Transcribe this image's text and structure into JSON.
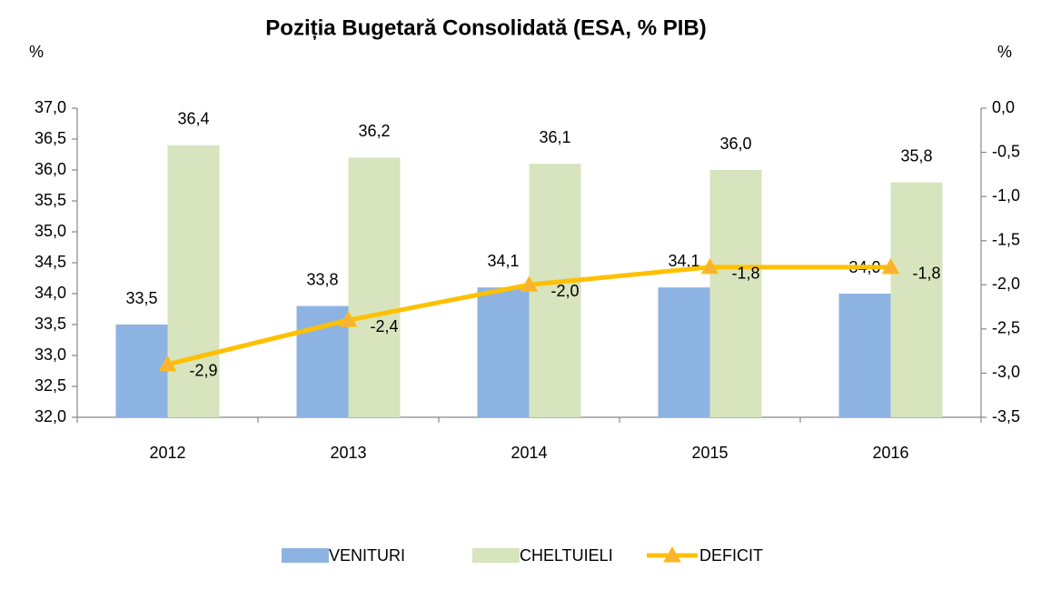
{
  "chart_data": {
    "type": "bar_line",
    "title": "Poziția Bugetară Consolidată (ESA, % PIB)",
    "y_label": "%",
    "y2_label": "%",
    "categories": [
      "2012",
      "2013",
      "2014",
      "2015",
      "2016"
    ],
    "series": [
      {
        "name": "VENITURI",
        "type": "bar",
        "color": "#8db3e2",
        "values": [
          33.5,
          33.8,
          34.1,
          34.1,
          34.0
        ],
        "value_labels": [
          "33,5",
          "33,8",
          "34,1",
          "34,1",
          "34,0"
        ]
      },
      {
        "name": "CHELTUIELI",
        "type": "bar",
        "color": "#d7e4bd",
        "values": [
          36.4,
          36.2,
          36.1,
          36.0,
          35.8
        ],
        "value_labels": [
          "36,4",
          "36,2",
          "36,1",
          "36,0",
          "35,8"
        ]
      },
      {
        "name": "DEFICIT",
        "type": "line",
        "axis": "y2",
        "color": "#ffc000",
        "marker_color": "#f9b233",
        "values": [
          -2.9,
          -2.4,
          -2.0,
          -1.8,
          -1.8
        ],
        "value_labels": [
          "-2,9",
          "-2,4",
          "-2,0",
          "-1,8",
          "-1,8"
        ]
      }
    ],
    "ylim": [
      32.0,
      37.0
    ],
    "yticks": [
      {
        "value": 32.0,
        "label": "32,0"
      },
      {
        "value": 32.5,
        "label": "32,5"
      },
      {
        "value": 33.0,
        "label": "33,0"
      },
      {
        "value": 33.5,
        "label": "33,5"
      },
      {
        "value": 34.0,
        "label": "34,0"
      },
      {
        "value": 34.5,
        "label": "34,5"
      },
      {
        "value": 35.0,
        "label": "35,0"
      },
      {
        "value": 35.5,
        "label": "35,5"
      },
      {
        "value": 36.0,
        "label": "36,0"
      },
      {
        "value": 36.5,
        "label": "36,5"
      },
      {
        "value": 37.0,
        "label": "37,0"
      }
    ],
    "y2lim": [
      -3.5,
      0.0
    ],
    "y2ticks": [
      {
        "value": -3.5,
        "label": "-3,5"
      },
      {
        "value": -3.0,
        "label": "-3,0"
      },
      {
        "value": -2.5,
        "label": "-2,5"
      },
      {
        "value": -2.0,
        "label": "-2,0"
      },
      {
        "value": -1.5,
        "label": "-1,5"
      },
      {
        "value": -1.0,
        "label": "-1,0"
      },
      {
        "value": -0.5,
        "label": "-0,5"
      },
      {
        "value": 0.0,
        "label": "0,0"
      }
    ],
    "grid": false,
    "legend": "bottom"
  }
}
